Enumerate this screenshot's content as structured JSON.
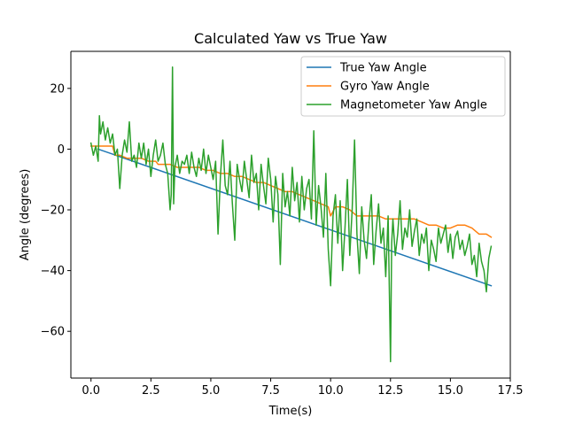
{
  "chart_data": {
    "type": "line",
    "title": "Calculated Yaw vs True Yaw",
    "xlabel": "Time(s)",
    "ylabel": "Angle (degrees)",
    "xlim": [
      -0.84,
      17.5
    ],
    "ylim": [
      -75.4,
      32.2
    ],
    "xticks": [
      0.0,
      2.5,
      5.0,
      7.5,
      10.0,
      12.5,
      15.0,
      17.5
    ],
    "xtick_labels": [
      "0.0",
      "2.5",
      "5.0",
      "7.5",
      "10.0",
      "12.5",
      "15.0",
      "17.5"
    ],
    "yticks": [
      -60,
      -40,
      -20,
      0,
      20
    ],
    "ytick_labels": [
      "−60",
      "−40",
      "−20",
      "0",
      "20"
    ],
    "grid": false,
    "legend_position": "upper right",
    "series": [
      {
        "name": "True Yaw Angle",
        "color": "#1f77b4",
        "x": [
          0.3,
          16.7
        ],
        "y": [
          0,
          -45
        ]
      },
      {
        "name": "Gyro Yaw Angle",
        "color": "#ff7f0e",
        "x": [
          0.0,
          0.3,
          0.6,
          0.9,
          1.0,
          1.2,
          1.5,
          1.8,
          2.1,
          2.4,
          2.7,
          2.8,
          3.0,
          3.3,
          3.6,
          3.9,
          4.2,
          4.5,
          4.8,
          5.1,
          5.4,
          5.7,
          6.0,
          6.3,
          6.6,
          6.9,
          7.2,
          7.5,
          7.8,
          8.1,
          8.4,
          8.7,
          9.0,
          9.3,
          9.6,
          9.9,
          10.0,
          10.2,
          10.5,
          10.8,
          11.1,
          11.4,
          11.7,
          12.0,
          12.3,
          12.6,
          12.9,
          13.2,
          13.5,
          13.8,
          14.1,
          14.4,
          14.7,
          15.0,
          15.3,
          15.6,
          15.9,
          16.2,
          16.5,
          16.7
        ],
        "y": [
          1,
          1,
          1,
          1,
          -2,
          -2,
          -3,
          -3,
          -3,
          -4,
          -4,
          -5,
          -5,
          -5,
          -6,
          -6,
          -6,
          -6,
          -7,
          -7,
          -8,
          -8,
          -9,
          -9,
          -10,
          -11,
          -11,
          -12,
          -13,
          -14,
          -14,
          -15,
          -16,
          -17,
          -18,
          -19,
          -22,
          -19,
          -19,
          -20,
          -22,
          -22,
          -22,
          -22,
          -23,
          -23,
          -23,
          -23,
          -23,
          -24,
          -25,
          -25,
          -26,
          -26,
          -25,
          -25,
          -26,
          -28,
          -28,
          -29
        ]
      },
      {
        "name": "Magnetometer Yaw Angle",
        "color": "#2ca02c",
        "x": [
          0.0,
          0.1,
          0.2,
          0.3,
          0.35,
          0.4,
          0.5,
          0.6,
          0.7,
          0.8,
          0.9,
          1.0,
          1.1,
          1.2,
          1.3,
          1.4,
          1.5,
          1.6,
          1.7,
          1.8,
          1.9,
          2.0,
          2.1,
          2.2,
          2.3,
          2.4,
          2.5,
          2.6,
          2.7,
          2.8,
          2.9,
          3.0,
          3.1,
          3.2,
          3.3,
          3.35,
          3.4,
          3.45,
          3.5,
          3.6,
          3.7,
          3.8,
          3.9,
          4.0,
          4.1,
          4.2,
          4.3,
          4.4,
          4.5,
          4.6,
          4.7,
          4.8,
          4.9,
          5.0,
          5.1,
          5.2,
          5.3,
          5.4,
          5.5,
          5.6,
          5.7,
          5.8,
          5.9,
          6.0,
          6.1,
          6.2,
          6.3,
          6.4,
          6.5,
          6.6,
          6.7,
          6.8,
          6.9,
          7.0,
          7.1,
          7.2,
          7.3,
          7.4,
          7.5,
          7.6,
          7.7,
          7.8,
          7.9,
          8.0,
          8.1,
          8.2,
          8.3,
          8.4,
          8.5,
          8.6,
          8.7,
          8.8,
          8.9,
          9.0,
          9.1,
          9.2,
          9.3,
          9.4,
          9.5,
          9.6,
          9.7,
          9.8,
          9.9,
          10.0,
          10.1,
          10.2,
          10.3,
          10.4,
          10.5,
          10.6,
          10.7,
          10.8,
          10.9,
          11.0,
          11.1,
          11.2,
          11.3,
          11.4,
          11.5,
          11.6,
          11.7,
          11.8,
          11.9,
          12.0,
          12.1,
          12.2,
          12.3,
          12.4,
          12.5,
          12.55,
          12.6,
          12.7,
          12.8,
          12.9,
          13.0,
          13.1,
          13.2,
          13.3,
          13.4,
          13.5,
          13.6,
          13.7,
          13.8,
          13.9,
          14.0,
          14.1,
          14.2,
          14.3,
          14.4,
          14.5,
          14.6,
          14.7,
          14.8,
          14.9,
          15.0,
          15.1,
          15.2,
          15.3,
          15.4,
          15.5,
          15.6,
          15.7,
          15.8,
          15.9,
          16.0,
          16.1,
          16.2,
          16.3,
          16.4,
          16.5,
          16.6,
          16.7
        ],
        "y": [
          2,
          -2,
          1,
          -4,
          11,
          5,
          9,
          3,
          7,
          2,
          5,
          -2,
          0,
          -13,
          -2,
          3,
          -1,
          9,
          -4,
          -2,
          -6,
          2,
          -3,
          2,
          -5,
          0,
          -9,
          -2,
          3,
          -4,
          -2,
          2,
          -5,
          -8,
          -20,
          -15,
          27,
          -18,
          -6,
          -2,
          -8,
          -4,
          -5,
          -2,
          -8,
          -1,
          -6,
          -9,
          -3,
          -7,
          0,
          -8,
          -2,
          -6,
          -10,
          -4,
          -28,
          -9,
          3,
          -12,
          -15,
          -4,
          -18,
          -30,
          -5,
          -10,
          -14,
          -4,
          -10,
          -16,
          -2,
          -11,
          -8,
          -20,
          -5,
          -12,
          -18,
          -3,
          -10,
          -24,
          -9,
          -15,
          -38,
          -8,
          -19,
          -14,
          -22,
          -6,
          -17,
          -11,
          -24,
          -9,
          -20,
          -13,
          -10,
          -23,
          6,
          -25,
          -12,
          -19,
          -29,
          -8,
          -33,
          -45,
          -22,
          -15,
          -31,
          -17,
          -40,
          -26,
          -10,
          -35,
          -20,
          3,
          -28,
          -41,
          -19,
          -30,
          -36,
          -24,
          -15,
          -38,
          -27,
          -18,
          -31,
          -26,
          -42,
          -22,
          -70,
          -31,
          -23,
          -35,
          -28,
          -17,
          -33,
          -26,
          -29,
          -20,
          -32,
          -27,
          -23,
          -35,
          -28,
          -31,
          -26,
          -40,
          -30,
          -33,
          -37,
          -26,
          -31,
          -28,
          -25,
          -34,
          -28,
          -36,
          -29,
          -27,
          -33,
          -30,
          -35,
          -32,
          -28,
          -38,
          -35,
          -42,
          -31,
          -37,
          -40,
          -47,
          -36,
          -32
        ]
      }
    ]
  }
}
